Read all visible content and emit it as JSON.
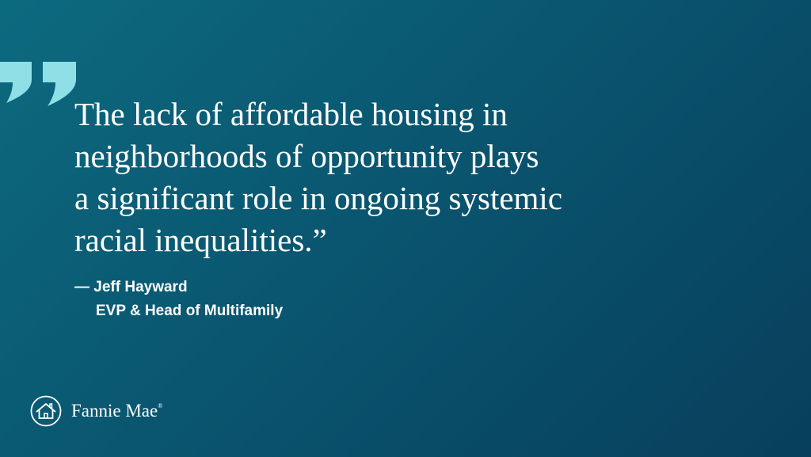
{
  "quote": {
    "lines": [
      "The lack of affordable housing in",
      "neighborhoods of opportunity plays",
      "a significant role in ongoing systemic",
      "racial inequalities.”"
    ]
  },
  "attribution": {
    "name": "— Jeff Hayward",
    "title": "EVP & Head of Multifamily"
  },
  "brand": {
    "name": "Fannie Mae",
    "registered": "®",
    "logo_icon": "fannie-mae-house-logo-icon"
  },
  "colors": {
    "background_start": "#0c6a7f",
    "background_end": "#073f5c",
    "quote_mark": "#8edfe6",
    "text": "#ffffff"
  }
}
